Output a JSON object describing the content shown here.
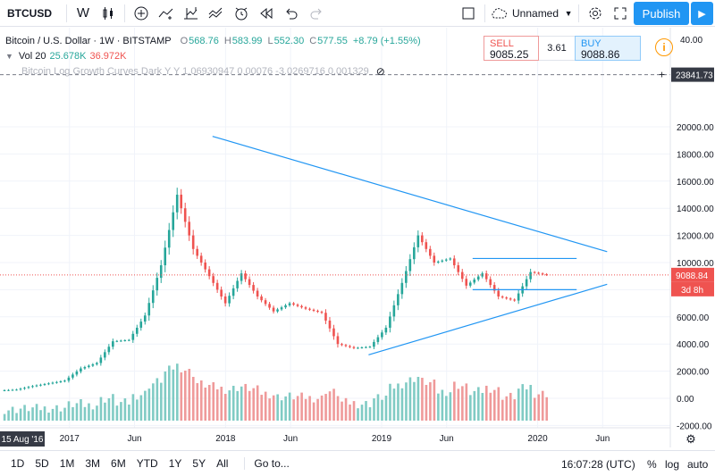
{
  "toolbar": {
    "symbol": "BTCUSD",
    "interval": "W",
    "layout_name": "Unnamed",
    "publish_label": "Publish",
    "icons": [
      "candles-icon",
      "add-indicator-icon",
      "compare-icon",
      "indicators-icon",
      "templates-icon",
      "alert-icon",
      "replay-icon",
      "undo-icon",
      "redo-icon",
      "layout-icon",
      "cloud-icon",
      "settings-icon",
      "fullscreen-icon",
      "camera-icon",
      "play-icon"
    ]
  },
  "legend": {
    "title": "Bitcoin / U.S. Dollar · 1W · BITSTAMP",
    "open_label": "O",
    "open": "568.76",
    "high_label": "H",
    "high": "583.99",
    "low_label": "L",
    "low": "552.30",
    "close_label": "C",
    "close": "577.55",
    "change": "+8.79 (+1.55%)",
    "volume_label": "Vol 20",
    "volume_a": "25.678K",
    "volume_b": "36.972K",
    "study": "Bitcoin Log Growth Curves Dark Y Y 1.06930947 0.00076 -3.0269716 0.001329"
  },
  "trade": {
    "sell_label": "SELL",
    "sell_price_main": "9085",
    "sell_price_tail": ".25",
    "spread": "3.61",
    "buy_label": "BUY",
    "buy_price_main": "9088.8",
    "buy_price_tail": "6"
  },
  "price_scale": {
    "top_label": "40.00",
    "marker_top": "23841.73",
    "ticks": [
      "20000.00",
      "18000.00",
      "16000.00",
      "14000.00",
      "12000.00",
      "10000.00",
      "8000.00",
      "6000.00",
      "4000.00",
      "2000.00",
      "0.00",
      "-2000.00"
    ],
    "current_price": "9088.84",
    "countdown": "3d 8h"
  },
  "time_scale": {
    "cursor_label": "15 Aug '16",
    "labels": [
      "2017",
      "Jun",
      "2018",
      "Jun",
      "2019",
      "Jun",
      "2020",
      "Jun"
    ]
  },
  "bottombar": {
    "ranges": [
      "1D",
      "5D",
      "1M",
      "3M",
      "6M",
      "YTD",
      "1Y",
      "5Y",
      "All"
    ],
    "goto_label": "Go to...",
    "clock": "16:07:28 (UTC)",
    "percent_label": "%",
    "log_label": "log",
    "auto_label": "auto"
  },
  "chart_data": {
    "type": "candlestick",
    "x": [
      "2016-08",
      "2016-10",
      "2016-12",
      "2017-02",
      "2017-04",
      "2017-05",
      "2017-06",
      "2017-08",
      "2017-09",
      "2017-10",
      "2017-11",
      "2017-12",
      "2018-01",
      "2018-02",
      "2018-03",
      "2018-04",
      "2018-05",
      "2018-06",
      "2018-08",
      "2018-09",
      "2018-10",
      "2018-11",
      "2018-12",
      "2019-02",
      "2019-04",
      "2019-05",
      "2019-06",
      "2019-07",
      "2019-08",
      "2019-09",
      "2019-10",
      "2019-11",
      "2019-12",
      "2020-01",
      "2020-02"
    ],
    "close": [
      580,
      640,
      900,
      1100,
      1300,
      2200,
      2600,
      4200,
      4300,
      6100,
      9800,
      15000,
      11000,
      9000,
      7000,
      9200,
      7500,
      6400,
      7000,
      6600,
      6300,
      4000,
      3700,
      3800,
      5200,
      8500,
      12000,
      10000,
      10300,
      8300,
      9200,
      7500,
      7200,
      9300,
      9088.84
    ],
    "price_lines": {
      "current": 9088.84,
      "resistance": 10300,
      "support": 8000,
      "top_marker": 23841.73
    },
    "trendlines": [
      {
        "from": [
          "2017-12",
          19300
        ],
        "to": [
          "2020-06",
          10800
        ]
      },
      {
        "from": [
          "2018-12",
          3200
        ],
        "to": [
          "2020-06",
          8400
        ]
      }
    ],
    "ylim": [
      -2500,
      23841.73
    ],
    "log_scale": false,
    "colors": {
      "up": "#26a69a",
      "down": "#ef5350",
      "trendline": "#2196f3",
      "volume_up": "#80cbc4",
      "volume_down": "#ef9a9a"
    }
  }
}
